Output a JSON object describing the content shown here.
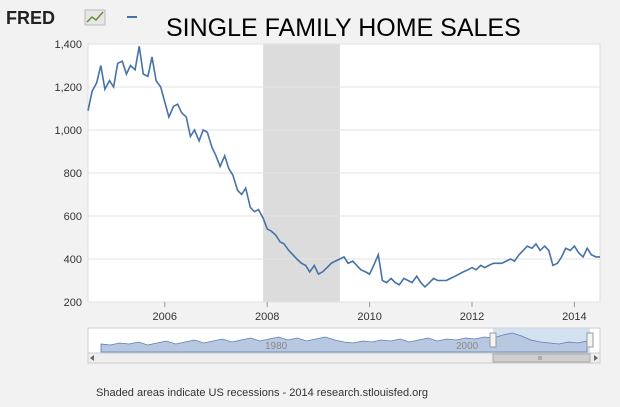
{
  "header": {
    "logo_text": "FRED",
    "title": "SINGLE FAMILY HOME SALES"
  },
  "colors": {
    "series": "#4572a7",
    "recession": "#dcdcdc",
    "navigator_fill": "#b8c8e0",
    "navigator_line": "#5a7fb5",
    "selection": "#c9d9ee"
  },
  "navigator": {
    "labels": [
      "1980",
      "2000"
    ],
    "scroll_left_icon": "arrow-left-icon",
    "scroll_right_icon": "arrow-right-icon"
  },
  "footer": {
    "note": "Shaded areas indicate US recessions - 2014 research.stlouisfed.org"
  },
  "chart_data": {
    "type": "line",
    "title": "SINGLE FAMILY HOME SALES",
    "xlim": [
      2004.5,
      2014.5
    ],
    "ylim": [
      200,
      1400
    ],
    "yticks": [
      200,
      400,
      600,
      800,
      1000,
      1200,
      1400
    ],
    "ytick_labels": [
      "200",
      "400",
      "600",
      "800",
      "1,000",
      "1,200",
      "1,400"
    ],
    "xticks": [
      2006,
      2008,
      2010,
      2012,
      2014
    ],
    "xtick_labels": [
      "2006",
      "2008",
      "2010",
      "2012",
      "2014"
    ],
    "grid": true,
    "recessions": [
      [
        2007.92,
        2009.42
      ]
    ],
    "series": [
      {
        "x": [
          2004.5,
          2004.58,
          2004.67,
          2004.75,
          2004.83,
          2004.92,
          2005.0,
          2005.08,
          2005.17,
          2005.25,
          2005.33,
          2005.42,
          2005.5,
          2005.58,
          2005.67,
          2005.75,
          2005.83,
          2005.92,
          2006.0,
          2006.08,
          2006.17,
          2006.25,
          2006.33,
          2006.42,
          2006.5,
          2006.58,
          2006.67,
          2006.75,
          2006.83,
          2006.92,
          2007.0,
          2007.08,
          2007.17,
          2007.25,
          2007.33,
          2007.42,
          2007.5,
          2007.58,
          2007.67,
          2007.75,
          2007.83,
          2007.92,
          2008.0,
          2008.08,
          2008.17,
          2008.25,
          2008.33,
          2008.42,
          2008.5,
          2008.58,
          2008.67,
          2008.75,
          2008.83,
          2008.92,
          2009.0,
          2009.08,
          2009.17,
          2009.25,
          2009.33,
          2009.42,
          2009.5,
          2009.58,
          2009.67,
          2009.75,
          2009.83,
          2009.92,
          2010.0,
          2010.08,
          2010.17,
          2010.25,
          2010.33,
          2010.42,
          2010.5,
          2010.58,
          2010.67,
          2010.75,
          2010.83,
          2010.92,
          2011.0,
          2011.08,
          2011.17,
          2011.25,
          2011.33,
          2011.42,
          2011.5,
          2011.58,
          2011.67,
          2011.75,
          2011.83,
          2011.92,
          2012.0,
          2012.08,
          2012.17,
          2012.25,
          2012.33,
          2012.42,
          2012.5,
          2012.58,
          2012.67,
          2012.75,
          2012.83,
          2012.92,
          2013.0,
          2013.08,
          2013.17,
          2013.25,
          2013.33,
          2013.42,
          2013.5,
          2013.58,
          2013.67,
          2013.75,
          2013.83,
          2013.92,
          2014.0,
          2014.08,
          2014.17,
          2014.25,
          2014.33,
          2014.42,
          2014.5
        ],
        "values": [
          1090,
          1180,
          1220,
          1300,
          1190,
          1230,
          1200,
          1310,
          1320,
          1260,
          1300,
          1280,
          1390,
          1260,
          1250,
          1340,
          1230,
          1200,
          1130,
          1060,
          1110,
          1120,
          1080,
          1060,
          970,
          1000,
          950,
          1000,
          990,
          920,
          880,
          830,
          880,
          820,
          790,
          720,
          700,
          730,
          640,
          620,
          630,
          590,
          540,
          530,
          510,
          480,
          470,
          440,
          420,
          400,
          380,
          370,
          340,
          370,
          330,
          340,
          360,
          380,
          390,
          400,
          410,
          380,
          390,
          370,
          350,
          340,
          330,
          370,
          420,
          300,
          290,
          310,
          290,
          280,
          310,
          300,
          290,
          320,
          290,
          270,
          290,
          310,
          300,
          300,
          300,
          310,
          320,
          330,
          340,
          350,
          360,
          350,
          370,
          360,
          370,
          380,
          380,
          380,
          390,
          400,
          390,
          420,
          440,
          460,
          450,
          470,
          440,
          460,
          440,
          370,
          380,
          410,
          450,
          440,
          460,
          430,
          410,
          450,
          420,
          410,
          410
        ]
      }
    ]
  }
}
